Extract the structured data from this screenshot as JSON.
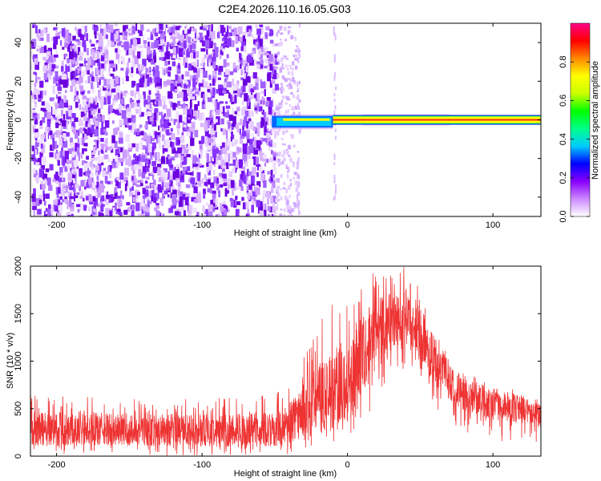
{
  "title": "C2E4.2026.110.16.05.G03",
  "chart_data": [
    {
      "type": "heatmap",
      "xlabel": "Height of straight line (km)",
      "ylabel": "Frequency (Hz)",
      "xlim": [
        -218,
        133
      ],
      "ylim": [
        -50,
        50
      ],
      "xticks": [
        -200,
        -100,
        0,
        100
      ],
      "yticks": [
        -40,
        -20,
        0,
        20,
        40
      ],
      "colorbar": {
        "label": "Normalized spectral amplitude",
        "range": [
          0,
          1
        ],
        "ticks": [
          0.0,
          0.2,
          0.4,
          0.6,
          0.8
        ],
        "colors": [
          "#ffffff",
          "#cc88ff",
          "#8800ff",
          "#0000ff",
          "#00ccff",
          "#00ff88",
          "#00ff00",
          "#ccff00",
          "#ffff00",
          "#ff8800",
          "#ff0000",
          "#ff0088"
        ]
      },
      "regions": [
        {
          "x": [
            -218,
            -50
          ],
          "y": [
            -50,
            50
          ],
          "amplitude": 0.1
        },
        {
          "x": [
            -52,
            -10
          ],
          "y": [
            -4,
            2
          ],
          "amplitude": 0.4
        },
        {
          "x": [
            -10,
            133
          ],
          "y": [
            -1,
            1
          ],
          "amplitude": 0.9
        }
      ]
    },
    {
      "type": "line",
      "xlabel": "Height of straight line (km)",
      "ylabel": "SNR (10 * v/v)",
      "xlim": [
        -218,
        133
      ],
      "ylim": [
        0,
        2000
      ],
      "xticks": [
        -200,
        -100,
        0,
        100
      ],
      "yticks": [
        0,
        500,
        1000,
        1500,
        2000
      ],
      "color": "#ee3333",
      "envelope": {
        "x": [
          -218,
          -150,
          -100,
          -50,
          -40,
          -30,
          -20,
          -10,
          0,
          10,
          20,
          30,
          40,
          50,
          60,
          70,
          80,
          100,
          133
        ],
        "mean": [
          290,
          280,
          270,
          280,
          350,
          480,
          600,
          720,
          850,
          1050,
          1300,
          1420,
          1450,
          1300,
          1000,
          800,
          650,
          550,
          450
        ],
        "upper": [
          650,
          620,
          620,
          650,
          800,
          1100,
          1400,
          1650,
          1750,
          1850,
          1950,
          2000,
          2000,
          1800,
          1400,
          1100,
          900,
          750,
          650
        ],
        "lower": [
          0,
          0,
          0,
          0,
          0,
          50,
          50,
          100,
          100,
          300,
          600,
          800,
          850,
          800,
          500,
          350,
          250,
          150,
          100
        ]
      }
    }
  ]
}
